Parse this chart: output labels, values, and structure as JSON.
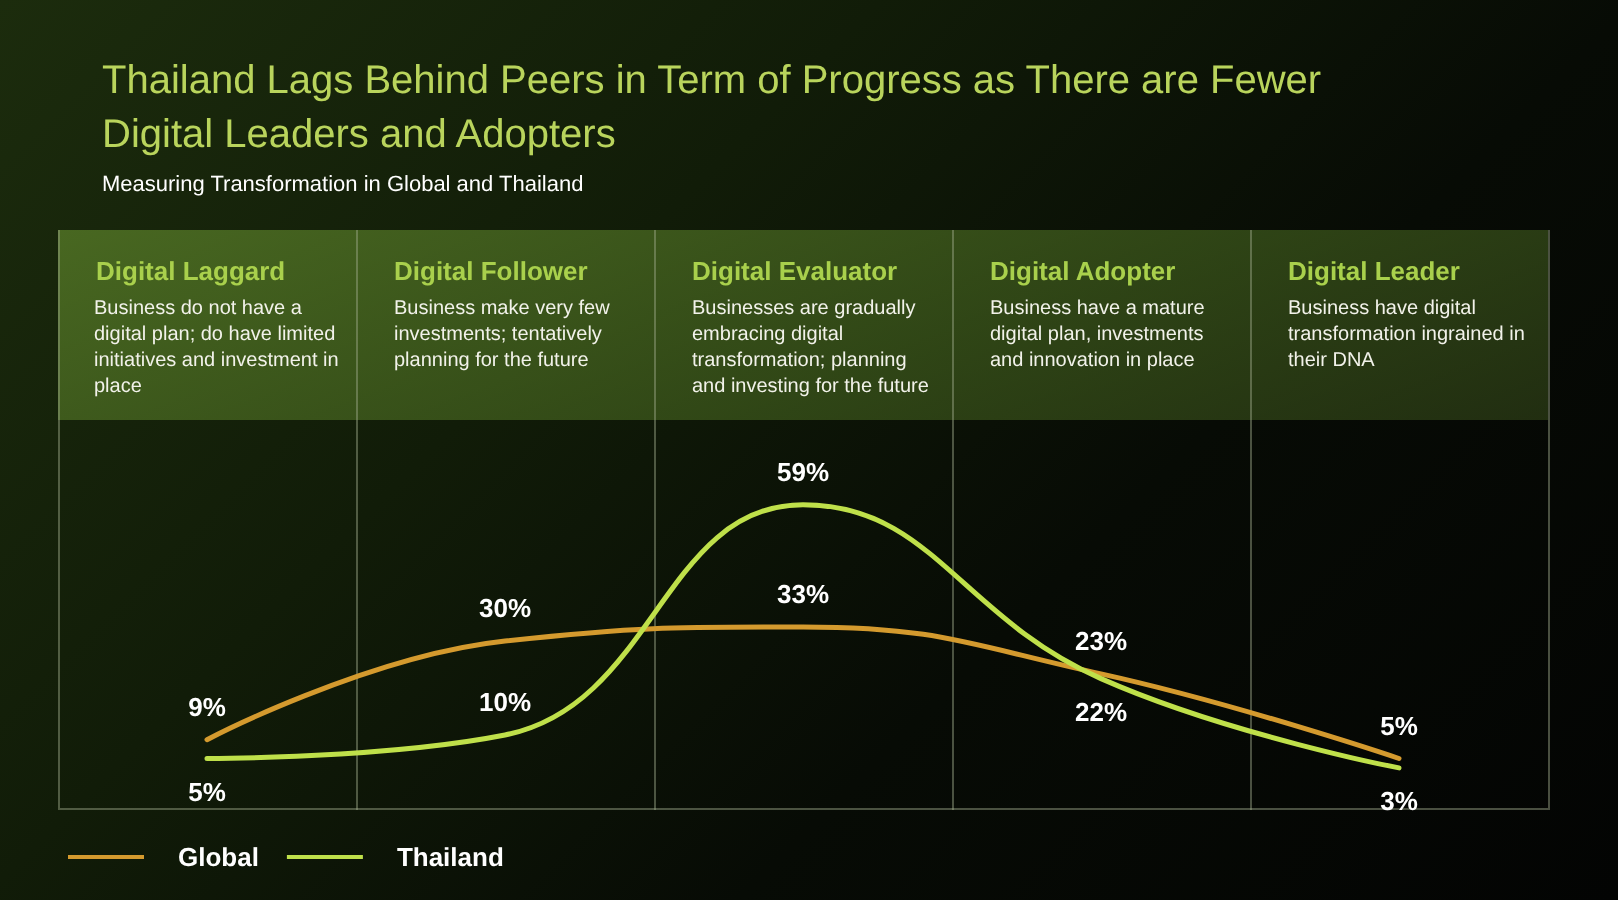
{
  "chart_data": {
    "type": "line",
    "title": "Thailand Lags Behind Peers in Term of Progress as There are Fewer Digital Leaders and Adopters",
    "subtitle": "Measuring Transformation in Global and Thailand",
    "categories": [
      "Digital Laggard",
      "Digital Follower",
      "Digital Evaluator",
      "Digital Adopter",
      "Digital Leader"
    ],
    "annotations": [
      "Business do not have a digital plan; do have limited initiatives and investment in place",
      "Business make very few investments; tentatively planning for the future",
      "Businesses are gradually embracing digital transformation; planning and investing for the future",
      "Business have a mature digital plan, investments and innovation in place",
      "Business have digital transformation ingrained in their DNA"
    ],
    "series": [
      {
        "name": "Global",
        "color": "#d49a2e",
        "values": [
          9,
          30,
          33,
          23,
          5
        ],
        "value_labels": [
          "9%",
          "30%",
          "33%",
          "23%",
          "5%"
        ]
      },
      {
        "name": "Thailand",
        "color": "#bfe04a",
        "values": [
          5,
          10,
          59,
          22,
          3
        ],
        "value_labels": [
          "5%",
          "10%",
          "59%",
          "22%",
          "3%"
        ]
      }
    ],
    "legend": "bottom left",
    "marker": "none"
  }
}
